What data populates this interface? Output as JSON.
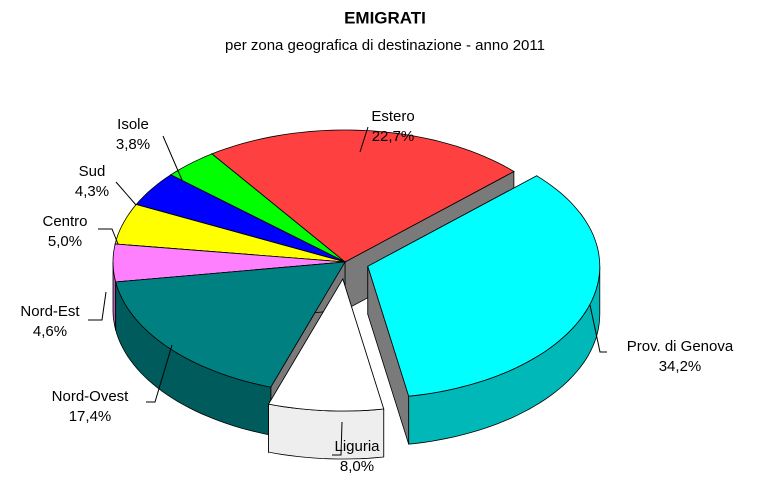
{
  "chart_data": {
    "type": "pie",
    "title": "EMIGRATI",
    "subtitle": "per zona geografica di destinazione - anno 2011",
    "categories": [
      "Estero",
      "Prov. di Genova",
      "Liguria",
      "Nord-Ovest",
      "Nord-Est",
      "Centro",
      "Sud",
      "Isole"
    ],
    "values": [
      22.7,
      34.2,
      8.0,
      17.4,
      4.6,
      5.0,
      4.3,
      3.8
    ],
    "value_labels": [
      "22,7%",
      "34,2%",
      "8,0%",
      "17,4%",
      "4,6%",
      "5,0%",
      "4,3%",
      "3,8%"
    ],
    "colors": [
      "#ff4040",
      "#00ffff",
      "#ffffff",
      "#008080",
      "#ff80ff",
      "#ffff00",
      "#0000ff",
      "#00ff00"
    ]
  }
}
